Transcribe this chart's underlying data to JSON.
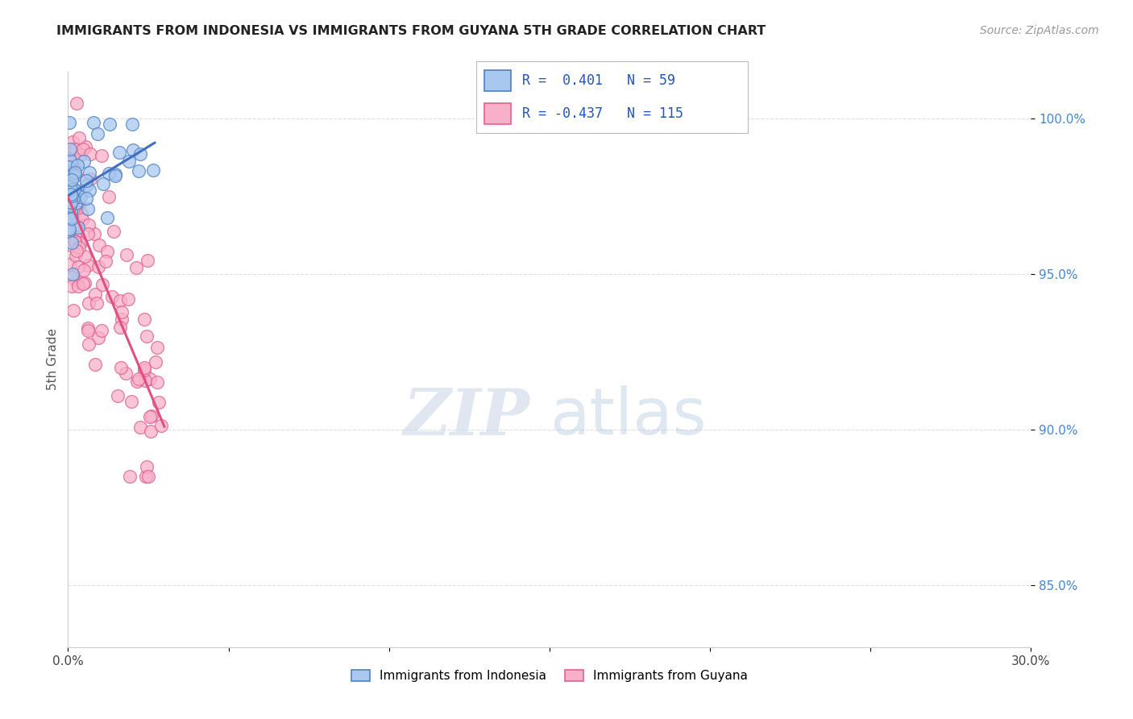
{
  "title": "IMMIGRANTS FROM INDONESIA VS IMMIGRANTS FROM GUYANA 5TH GRADE CORRELATION CHART",
  "source": "Source: ZipAtlas.com",
  "ylabel": "5th Grade",
  "xlim": [
    0.0,
    0.3
  ],
  "ylim": [
    0.83,
    1.015
  ],
  "ytick_vals": [
    1.0,
    0.95,
    0.9,
    0.85
  ],
  "ytick_labels": [
    "100.0%",
    "95.0%",
    "90.0%",
    "85.0%"
  ],
  "xtick_vals": [
    0.0,
    0.05,
    0.1,
    0.15,
    0.2,
    0.25,
    0.3
  ],
  "xtick_labels": [
    "0.0%",
    "",
    "",
    "",
    "",
    "",
    "30.0%"
  ],
  "color_blue_fill": "#a8c8f0",
  "color_blue_edge": "#5080c0",
  "color_pink_fill": "#f8b0c8",
  "color_pink_edge": "#e06090",
  "line_blue": "#4070c0",
  "line_pink": "#e05080",
  "legend_r1": "R =  0.401   N = 59",
  "legend_r2": "R = -0.437   N = 115",
  "watermark_zip_color": "#ccd8e8",
  "watermark_atlas_color": "#b8cce0",
  "title_color": "#222222",
  "source_color": "#999999",
  "ytick_color": "#4488cc",
  "grid_color": "#dddddd",
  "legend_text_color": "#2255bb"
}
